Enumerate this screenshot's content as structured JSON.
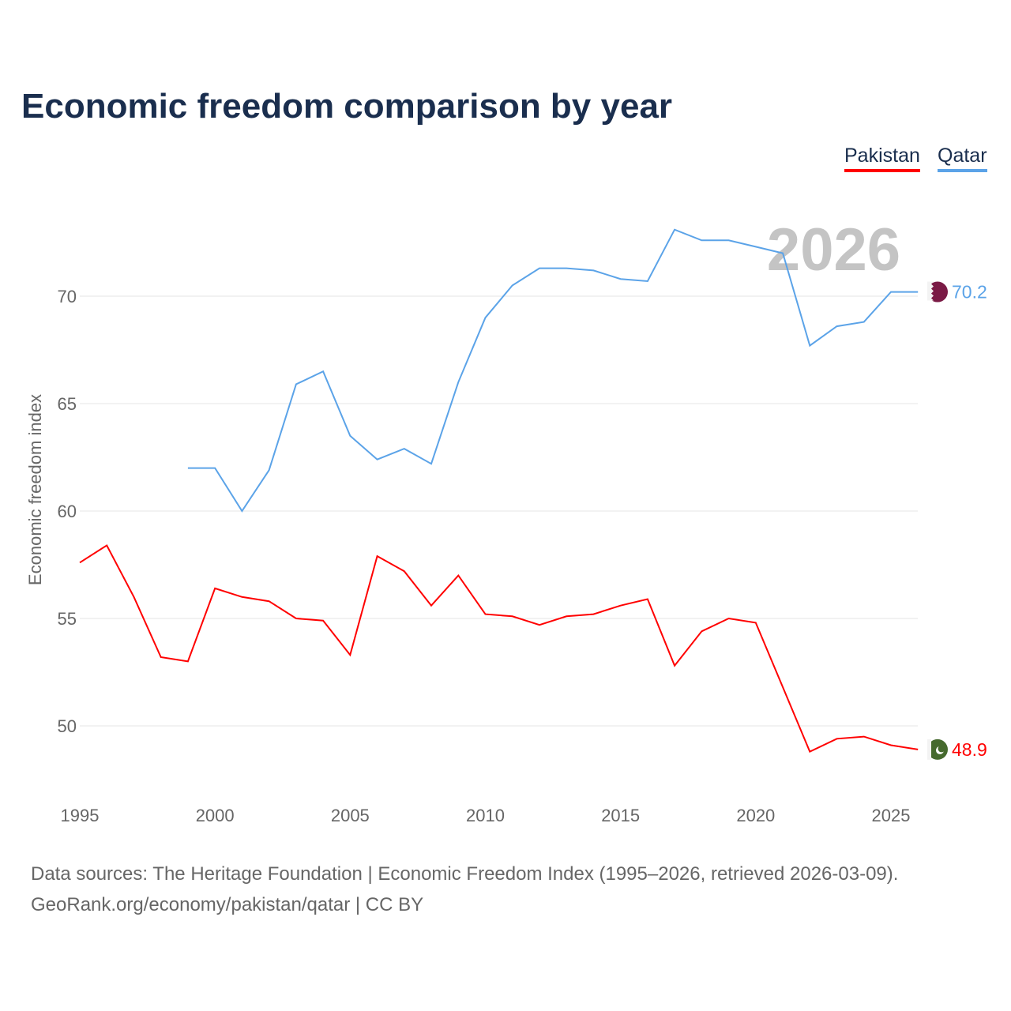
{
  "chart_data": {
    "type": "line",
    "title": "Economic freedom comparison by year",
    "xlabel": "",
    "ylabel": "Economic freedom index",
    "xlim": [
      1995,
      2026
    ],
    "ylim": [
      47,
      74
    ],
    "x_ticks": [
      1995,
      2000,
      2005,
      2010,
      2015,
      2020,
      2025
    ],
    "y_ticks": [
      50,
      55,
      60,
      65,
      70
    ],
    "grid": true,
    "legend": "top-right",
    "year_watermark": "2026",
    "series": [
      {
        "name": "Pakistan",
        "color": "#ff0000",
        "end_label": "48.9",
        "x": [
          1995,
          1996,
          1997,
          1998,
          1999,
          2000,
          2001,
          2002,
          2003,
          2004,
          2005,
          2006,
          2007,
          2008,
          2009,
          2010,
          2011,
          2012,
          2013,
          2014,
          2015,
          2016,
          2017,
          2018,
          2019,
          2020,
          2021,
          2022,
          2023,
          2024,
          2025,
          2026
        ],
        "values": [
          57.6,
          58.4,
          56.0,
          53.2,
          53.0,
          56.4,
          56.0,
          55.8,
          55.0,
          54.9,
          53.3,
          57.9,
          57.2,
          55.6,
          57.0,
          55.2,
          55.1,
          54.7,
          55.1,
          55.2,
          55.6,
          55.9,
          52.8,
          54.4,
          55.0,
          54.8,
          51.8,
          48.8,
          49.4,
          49.5,
          49.1,
          48.9
        ]
      },
      {
        "name": "Qatar",
        "color": "#5ba3e8",
        "end_label": "70.2",
        "x": [
          1999,
          2000,
          2001,
          2002,
          2003,
          2004,
          2005,
          2006,
          2007,
          2008,
          2009,
          2010,
          2011,
          2012,
          2013,
          2014,
          2015,
          2016,
          2017,
          2018,
          2019,
          2020,
          2021,
          2022,
          2023,
          2024,
          2025,
          2026
        ],
        "values": [
          62.0,
          62.0,
          60.0,
          61.9,
          65.9,
          66.5,
          63.5,
          62.4,
          62.9,
          62.2,
          66.0,
          69.0,
          70.5,
          71.3,
          71.3,
          71.2,
          70.8,
          70.7,
          73.1,
          72.6,
          72.6,
          72.3,
          72.0,
          67.7,
          68.6,
          68.8,
          70.2,
          70.2
        ]
      }
    ]
  },
  "footer": {
    "line1": "Data sources: The Heritage Foundation | Economic Freedom Index (1995–2026, retrieved 2026-03-09).",
    "line2": "GeoRank.org/economy/pakistan/qatar | CC BY"
  }
}
